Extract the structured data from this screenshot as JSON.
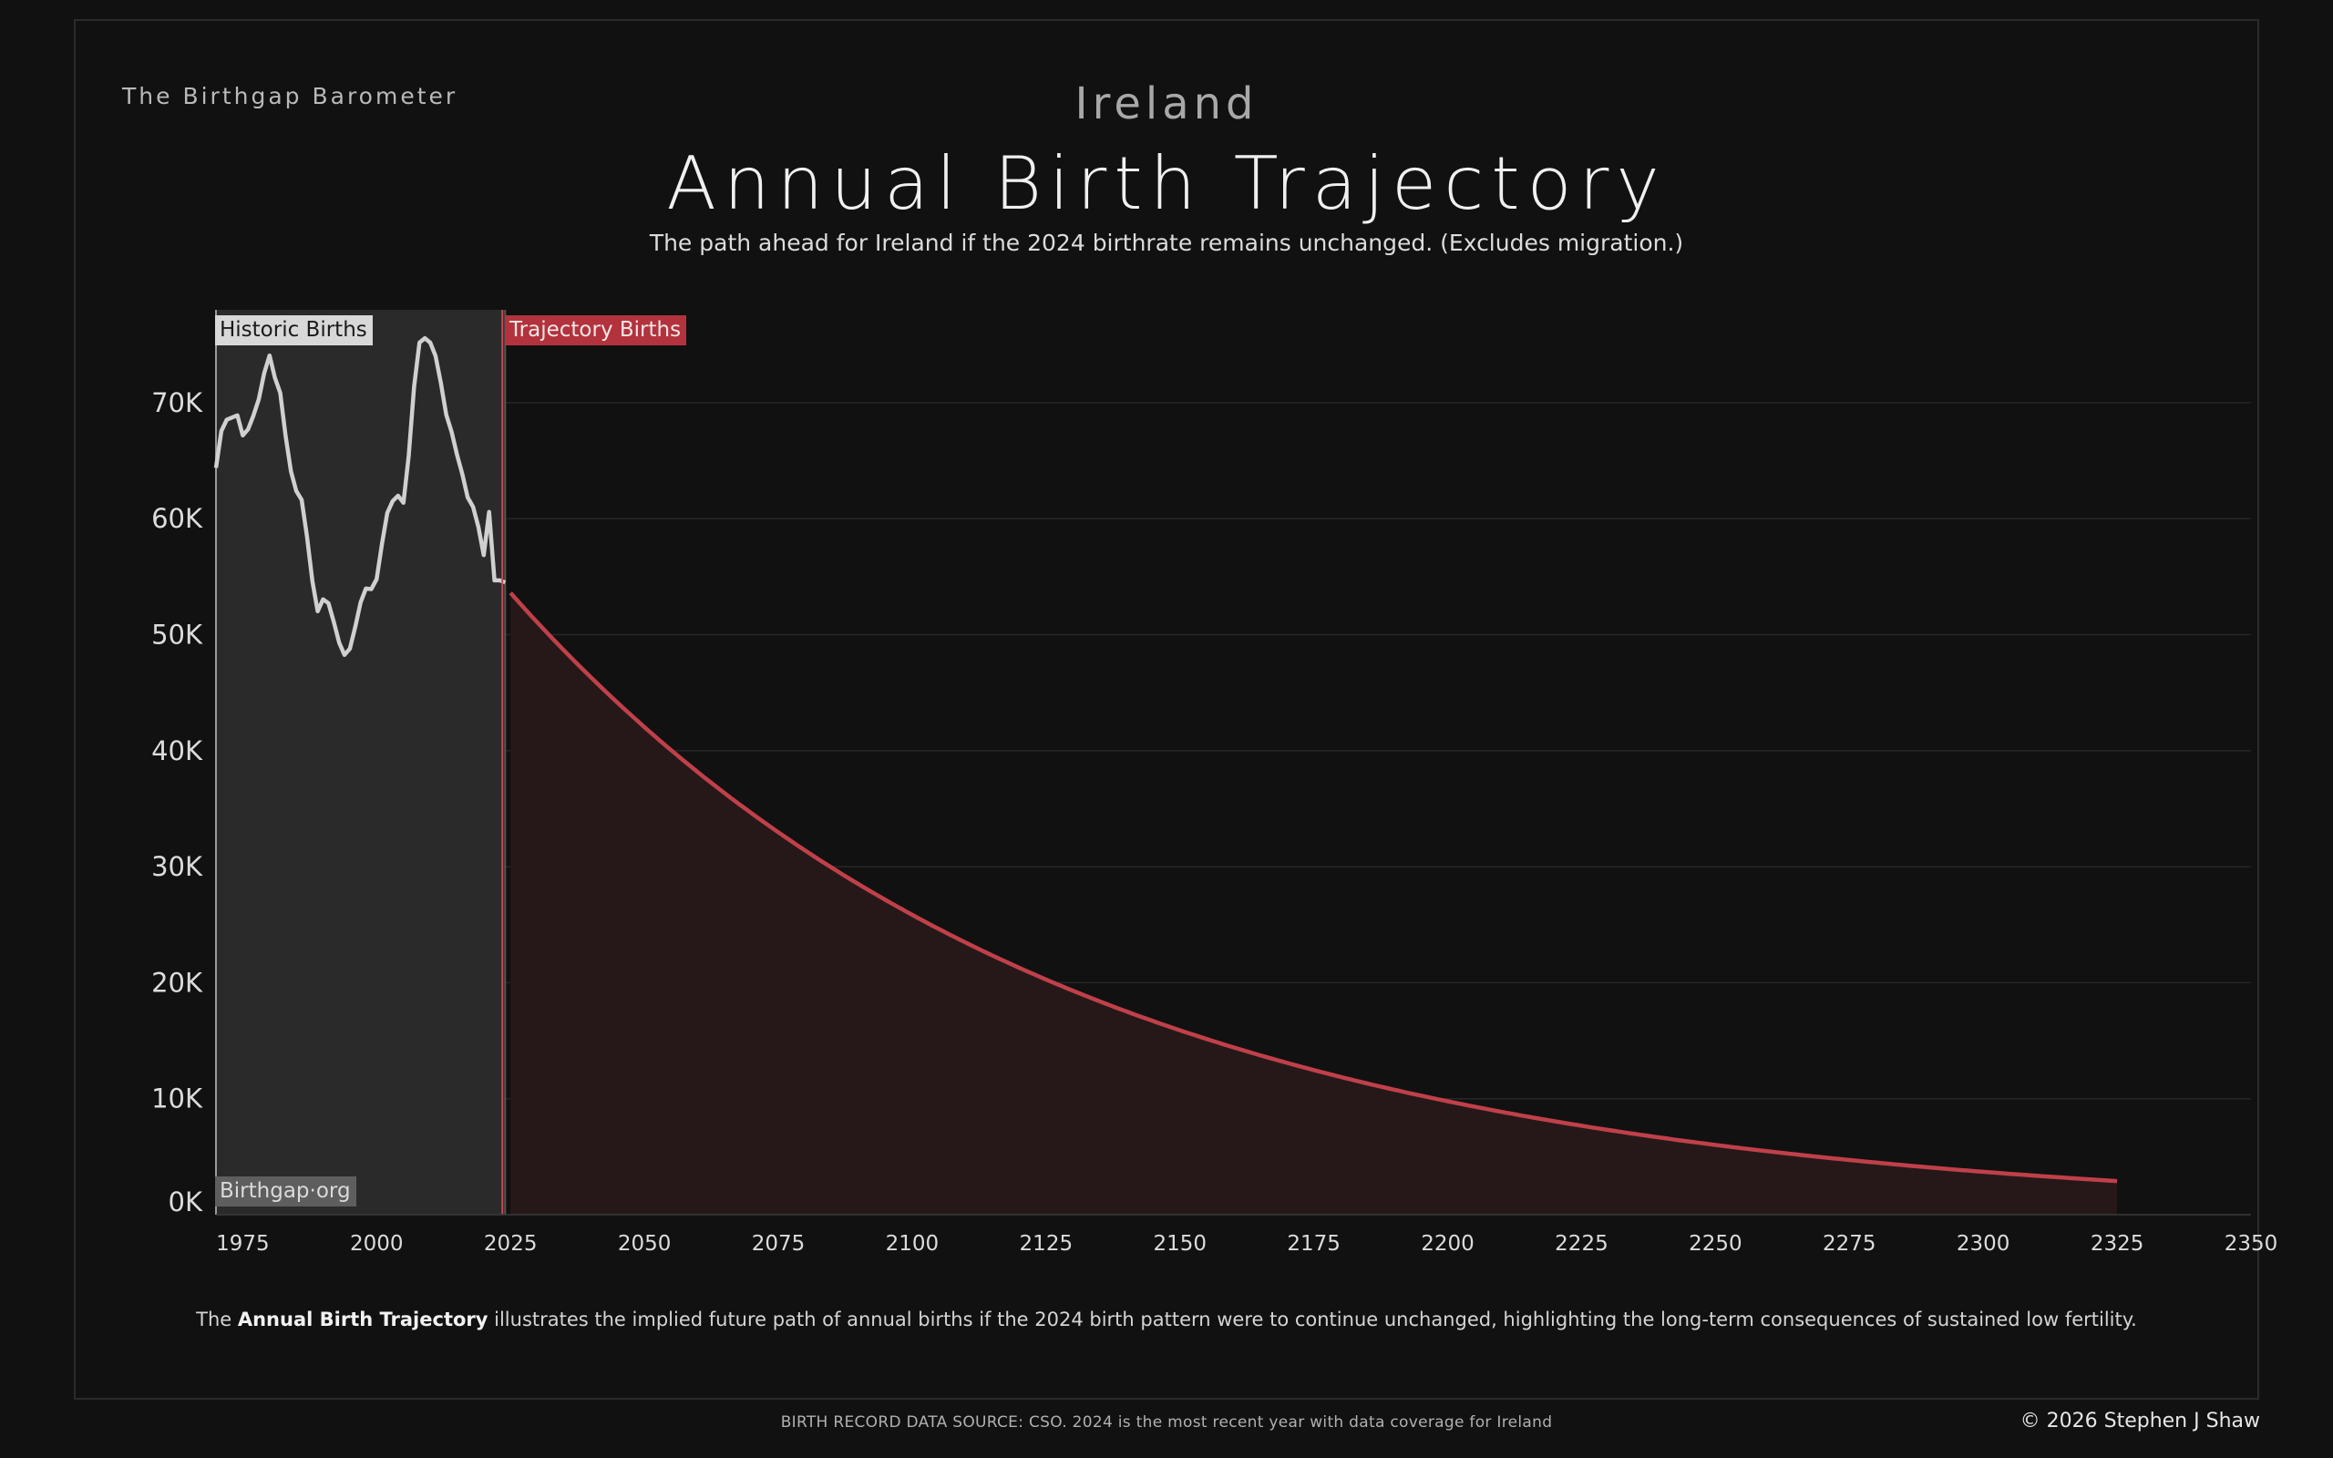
{
  "header": {
    "brand": "The Birthgap Barometer",
    "country": "Ireland",
    "title": "Annual Birth Trajectory",
    "subtitle": "The path ahead for Ireland if the 2024 birthrate remains unchanged.  (Excludes migration.)"
  },
  "labels": {
    "historic": "Historic Births",
    "trajectory": "Trajectory Births",
    "site": "Birthgap·org"
  },
  "footer": {
    "note_prefix": "The ",
    "note_bold": "Annual Birth Trajectory",
    "note_suffix": " illustrates the implied future path of annual births if the 2024 birth pattern were to continue unchanged, highlighting the long-term consequences of sustained low fertility.",
    "source": "BIRTH RECORD DATA SOURCE: CSO. 2024 is the most recent year with data coverage for Ireland",
    "copyright": "© 2026 Stephen J Shaw"
  },
  "colors": {
    "background": "#111111",
    "historic_line": "#d0d0d0",
    "historic_fill": "#2a2a2a",
    "trajectory_line": "#c0404a",
    "trajectory_fill": "#261818",
    "grid": "#262626",
    "axis_text": "#dcdcdc"
  },
  "chart_data": {
    "type": "area",
    "title": "Annual Birth Trajectory",
    "xlabel": "",
    "ylabel": "",
    "xlim": [
      1970,
      2350
    ],
    "ylim": [
      0,
      78000
    ],
    "x_ticks": [
      "1975",
      "2000",
      "2025",
      "2050",
      "2075",
      "2100",
      "2125",
      "2150",
      "2175",
      "2200",
      "2225",
      "2250",
      "2275",
      "2300",
      "2325",
      "2350"
    ],
    "y_ticks": [
      "0K",
      "10K",
      "20K",
      "30K",
      "40K",
      "50K",
      "60K",
      "70K"
    ],
    "grid": true,
    "series": [
      {
        "name": "Historic Births",
        "x": [
          1970,
          1971,
          1972,
          1973,
          1974,
          1975,
          1976,
          1977,
          1978,
          1979,
          1980,
          1981,
          1982,
          1983,
          1984,
          1985,
          1986,
          1987,
          1988,
          1989,
          1990,
          1991,
          1992,
          1993,
          1994,
          1995,
          1996,
          1997,
          1998,
          1999,
          2000,
          2001,
          2002,
          2003,
          2004,
          2005,
          2006,
          2007,
          2008,
          2009,
          2010,
          2011,
          2012,
          2013,
          2014,
          2015,
          2016,
          2017,
          2018,
          2019,
          2020,
          2021,
          2022,
          2023,
          2024
        ],
        "values": [
          64382,
          67551,
          68527,
          68713,
          68907,
          67178,
          67718,
          68892,
          70299,
          72539,
          74064,
          72158,
          70843,
          67117,
          64062,
          62388,
          61620,
          58433,
          54600,
          52018,
          53044,
          52718,
          51089,
          49304,
          48255,
          48787,
          50655,
          52775,
          53969,
          53924,
          54789,
          57854,
          60503,
          61517,
          61972,
          61372,
          65425,
          71389,
          75173,
          75554,
          75174,
          74033,
          71674,
          68954,
          67462,
          65536,
          63841,
          61824,
          61016,
          59294,
          56858,
          60575,
          54678,
          54678,
          54501
        ]
      },
      {
        "name": "Trajectory Births",
        "x_start": 2025,
        "x_end": 2325,
        "start_value": 53600,
        "end_value": 2900,
        "curve": "exponential decay"
      }
    ]
  }
}
